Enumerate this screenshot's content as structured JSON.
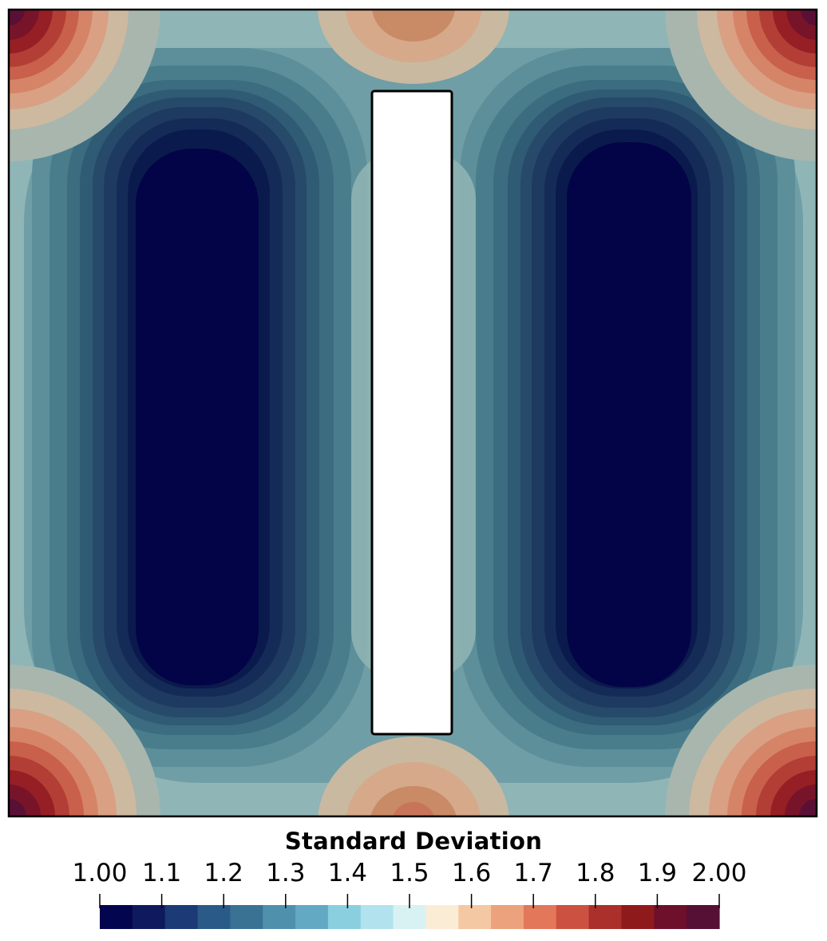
{
  "chart_data": {
    "type": "heatmap",
    "title": "Standard Deviation",
    "colorbar": {
      "label": "Standard Deviation",
      "range": [
        1.0,
        2.0
      ],
      "tick_values": [
        1.0,
        1.1,
        1.2,
        1.3,
        1.4,
        1.5,
        1.6,
        1.7,
        1.8,
        1.9,
        2.0
      ],
      "tick_labels": [
        "1.00",
        "1.1",
        "1.2",
        "1.3",
        "1.4",
        "1.5",
        "1.6",
        "1.7",
        "1.8",
        "1.9",
        "2.00"
      ],
      "colors": [
        "#03064e",
        "#0f1a5e",
        "#1c3a76",
        "#2a5a88",
        "#3a7294",
        "#4f90ad",
        "#63a9c3",
        "#89cfe0",
        "#b2e2ed",
        "#d8f2f3",
        "#fbecd6",
        "#f3c8a3",
        "#eba27d",
        "#e2775a",
        "#cc5140",
        "#ab2f2a",
        "#8f1a1c",
        "#6e0f2b",
        "#560f35"
      ]
    },
    "domain": {
      "description_shown": "square field with white central rectangular obstacle",
      "min_regions": [
        "left of obstacle",
        "right of obstacle"
      ],
      "max_regions": [
        "four outer corners"
      ]
    }
  }
}
